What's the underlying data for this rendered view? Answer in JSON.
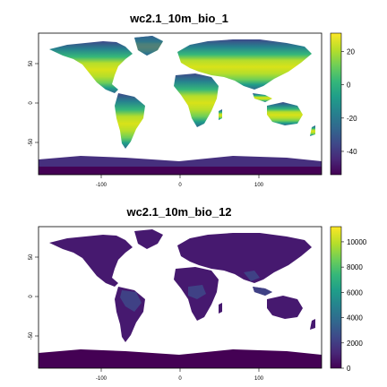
{
  "maps": [
    {
      "title": "wc2.1_10m_bio_1",
      "colorbar_ticks": [
        "20",
        "0",
        "-20",
        "-40"
      ],
      "colorbar_tick_values": [
        20,
        0,
        -20,
        -40
      ],
      "colorbar_range": [
        -54,
        31
      ],
      "x_ticks": [
        "-100",
        "0",
        "100"
      ],
      "y_ticks": [
        "50",
        "0",
        "-50"
      ],
      "palette": [
        "#440154",
        "#482878",
        "#3e4989",
        "#31688e",
        "#26828e",
        "#1f9e89",
        "#35b779",
        "#6ece58",
        "#b5de2b",
        "#fde725"
      ]
    },
    {
      "title": "wc2.1_10m_bio_12",
      "colorbar_ticks": [
        "10000",
        "8000",
        "6000",
        "4000",
        "2000",
        "0"
      ],
      "colorbar_tick_values": [
        10000,
        8000,
        6000,
        4000,
        2000,
        0
      ],
      "colorbar_range": [
        0,
        11200
      ],
      "x_ticks": [
        "-100",
        "0",
        "100"
      ],
      "y_ticks": [
        "50",
        "0",
        "-50"
      ],
      "palette": [
        "#440154",
        "#482878",
        "#3e4989",
        "#31688e",
        "#26828e",
        "#1f9e89",
        "#35b779",
        "#6ece58",
        "#b5de2b",
        "#fde725"
      ]
    }
  ]
}
